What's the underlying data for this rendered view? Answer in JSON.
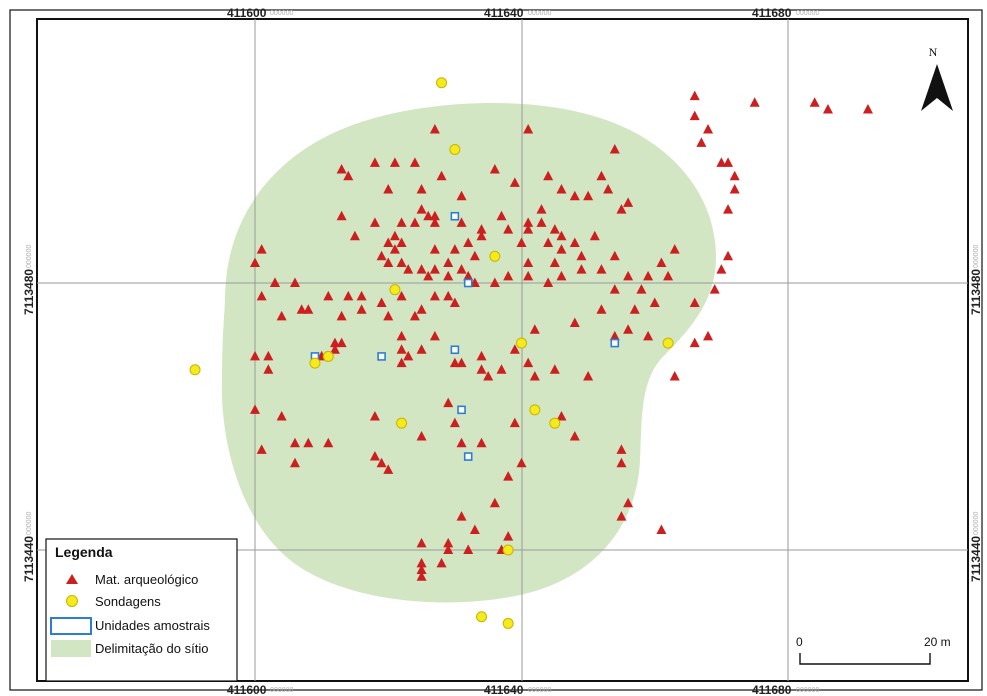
{
  "coordinates": {
    "easting": [
      {
        "major": "411600",
        "minor": "000000"
      },
      {
        "major": "411640",
        "minor": "000000"
      },
      {
        "major": "411680",
        "minor": "000000"
      }
    ],
    "northing": [
      {
        "major": "7113480",
        "minor": "000000"
      },
      {
        "major": "7113440",
        "minor": "000000"
      }
    ]
  },
  "north_arrow": {
    "label": "N",
    "icon": "north-arrow-icon"
  },
  "legend": {
    "title": "Legenda",
    "items": [
      {
        "label": "Mat. arqueológico",
        "symbol": "red-triangle",
        "color": "#cc1f1f"
      },
      {
        "label": "Sondagens",
        "symbol": "yellow-circle",
        "color": "#f5ea1c"
      },
      {
        "label": "Unidades amostrais",
        "symbol": "blue-square",
        "color": "#2a7fd4"
      },
      {
        "label": "Delimitação do sítio",
        "symbol": "green-area",
        "color": "#d3e6c4"
      }
    ]
  },
  "scale_bar": {
    "start": "0",
    "end": "20 m"
  },
  "colors": {
    "site_area": "#d3e6c4",
    "triangle": "#cc1f1f",
    "circle_fill": "#f5ea1c",
    "circle_stroke": "#c9b300",
    "square_stroke": "#2a7fd4",
    "grid": "#9a9a9a"
  },
  "mat_arqueologico": [
    [
      411627,
      7113503
    ],
    [
      411641,
      7113503
    ],
    [
      411654,
      7113500
    ],
    [
      411624,
      7113498
    ],
    [
      411628,
      7113496
    ],
    [
      411625,
      7113494
    ],
    [
      411631,
      7113493
    ],
    [
      411636,
      7113497
    ],
    [
      411639,
      7113495
    ],
    [
      411644,
      7113496
    ],
    [
      411646,
      7113494
    ],
    [
      411648,
      7113493
    ],
    [
      411650,
      7113493
    ],
    [
      411643,
      7113491
    ],
    [
      411641,
      7113489
    ],
    [
      411634,
      7113488
    ],
    [
      411631,
      7113489
    ],
    [
      411618,
      7113498
    ],
    [
      411613,
      7113497
    ],
    [
      411614,
      7113496
    ],
    [
      411620,
      7113494
    ],
    [
      411621,
      7113498
    ],
    [
      411613,
      7113490
    ],
    [
      411615,
      7113487
    ],
    [
      411618,
      7113489
    ],
    [
      411620,
      7113486
    ],
    [
      411621,
      7113487
    ],
    [
      411622,
      7113489
    ],
    [
      411625,
      7113491
    ],
    [
      411626,
      7113490
    ],
    [
      411627,
      7113489
    ],
    [
      411627,
      7113490
    ],
    [
      411624,
      7113489
    ],
    [
      411622,
      7113486
    ],
    [
      411619,
      7113484
    ],
    [
      411620,
      7113483
    ],
    [
      411621,
      7113485
    ],
    [
      411623,
      7113482
    ],
    [
      411622,
      7113483
    ],
    [
      411627,
      7113485
    ],
    [
      411630,
      7113485
    ],
    [
      411633,
      7113484
    ],
    [
      411631,
      7113482
    ],
    [
      411629,
      7113483
    ],
    [
      411627,
      7113482
    ],
    [
      411625,
      7113482
    ],
    [
      411626,
      7113481
    ],
    [
      411629,
      7113481
    ],
    [
      411632,
      7113481
    ],
    [
      411633,
      7113480
    ],
    [
      411634,
      7113487
    ],
    [
      411632,
      7113486
    ],
    [
      411637,
      7113490
    ],
    [
      411638,
      7113488
    ],
    [
      411641,
      7113488
    ],
    [
      411643,
      7113489
    ],
    [
      411645,
      7113488
    ],
    [
      411646,
      7113487
    ],
    [
      411648,
      7113486
    ],
    [
      411651,
      7113487
    ],
    [
      411649,
      7113484
    ],
    [
      411646,
      7113485
    ],
    [
      411644,
      7113486
    ],
    [
      411640,
      7113486
    ],
    [
      411641,
      7113483
    ],
    [
      411645,
      7113483
    ],
    [
      411646,
      7113481
    ],
    [
      411649,
      7113482
    ],
    [
      411652,
      7113482
    ],
    [
      411654,
      7113479
    ],
    [
      411654,
      7113484
    ],
    [
      411655,
      7113491
    ],
    [
      411652,
      7113496
    ],
    [
      411653,
      7113494
    ],
    [
      411656,
      7113492
    ],
    [
      411644,
      7113480
    ],
    [
      411641,
      7113481
    ],
    [
      411638,
      7113481
    ],
    [
      411636,
      7113480
    ],
    [
      411600,
      7113483
    ],
    [
      411603,
      7113480
    ],
    [
      411601,
      7113478
    ],
    [
      411606,
      7113480
    ],
    [
      411604,
      7113475
    ],
    [
      411608,
      7113476
    ],
    [
      411611,
      7113478
    ],
    [
      411614,
      7113478
    ],
    [
      411616,
      7113478
    ],
    [
      411619,
      7113477
    ],
    [
      411622,
      7113478
    ],
    [
      411625,
      7113476
    ],
    [
      411627,
      7113478
    ],
    [
      411629,
      7113478
    ],
    [
      411630,
      7113477
    ],
    [
      411627,
      7113472
    ],
    [
      411624,
      7113475
    ],
    [
      411620,
      7113475
    ],
    [
      411622,
      7113472
    ],
    [
      411616,
      7113476
    ],
    [
      411613,
      7113475
    ],
    [
      411612,
      7113471
    ],
    [
      411612,
      7113470
    ],
    [
      411613,
      7113471
    ],
    [
      411610,
      7113469
    ],
    [
      411622,
      7113470
    ],
    [
      411623,
      7113469
    ],
    [
      411622,
      7113468
    ],
    [
      411625,
      7113470
    ],
    [
      411630,
      7113468
    ],
    [
      411634,
      7113467
    ],
    [
      411635,
      7113466
    ],
    [
      411634,
      7113469
    ],
    [
      411631,
      7113468
    ],
    [
      411637,
      7113467
    ],
    [
      411641,
      7113468
    ],
    [
      411600,
      7113469
    ],
    [
      411602,
      7113469
    ],
    [
      411602,
      7113467
    ],
    [
      411600,
      7113461
    ],
    [
      411604,
      7113460
    ],
    [
      411601,
      7113455
    ],
    [
      411606,
      7113456
    ],
    [
      411606,
      7113453
    ],
    [
      411608,
      7113456
    ],
    [
      411611,
      7113456
    ],
    [
      411618,
      7113460
    ],
    [
      411625,
      7113457
    ],
    [
      411629,
      7113462
    ],
    [
      411630,
      7113459
    ],
    [
      411631,
      7113456
    ],
    [
      411639,
      7113459
    ],
    [
      411642,
      7113466
    ],
    [
      411639,
      7113470
    ],
    [
      411642,
      7113473
    ],
    [
      411645,
      7113467
    ],
    [
      411648,
      7113474
    ],
    [
      411652,
      7113476
    ],
    [
      411657,
      7113476
    ],
    [
      411658,
      7113479
    ],
    [
      411660,
      7113477
    ],
    [
      411656,
      7113481
    ],
    [
      411659,
      7113481
    ],
    [
      411662,
      7113481
    ],
    [
      411661,
      7113483
    ],
    [
      411663,
      7113485
    ],
    [
      411666,
      7113477
    ],
    [
      411669,
      7113479
    ],
    [
      411670,
      7113482
    ],
    [
      411671,
      7113484
    ],
    [
      411671,
      7113491
    ],
    [
      411672,
      7113496
    ],
    [
      411671,
      7113498
    ],
    [
      411668,
      7113503
    ],
    [
      411666,
      7113505
    ],
    [
      411667,
      7113501
    ],
    [
      411670,
      7113498
    ],
    [
      411672,
      7113494
    ],
    [
      411666,
      7113508
    ],
    [
      411675,
      7113507
    ],
    [
      411684,
      7113507
    ],
    [
      411686,
      7113506
    ],
    [
      411692,
      7113506
    ],
    [
      411668,
      7113472
    ],
    [
      411666,
      7113471
    ],
    [
      411663,
      7113466
    ],
    [
      411659,
      7113472
    ],
    [
      411656,
      7113473
    ],
    [
      411654,
      7113472
    ],
    [
      411650,
      7113466
    ],
    [
      411655,
      7113455
    ],
    [
      411655,
      7113453
    ],
    [
      411648,
      7113457
    ],
    [
      411646,
      7113460
    ],
    [
      411634,
      7113456
    ],
    [
      411638,
      7113451
    ],
    [
      411640,
      7113453
    ],
    [
      411636,
      7113447
    ],
    [
      411633,
      7113443
    ],
    [
      411637,
      7113440
    ],
    [
      411629,
      7113440
    ],
    [
      411625,
      7113441
    ],
    [
      411625,
      7113436
    ],
    [
      411625,
      7113437
    ],
    [
      411625,
      7113438
    ],
    [
      411638,
      7113442
    ],
    [
      411631,
      7113445
    ],
    [
      411619,
      7113453
    ],
    [
      411620,
      7113452
    ],
    [
      411618,
      7113454
    ],
    [
      411655,
      7113445
    ],
    [
      411656,
      7113447
    ],
    [
      411661,
      7113443
    ],
    [
      411632,
      7113440
    ],
    [
      411629,
      7113441
    ],
    [
      411628,
      7113438
    ],
    [
      411607,
      7113476
    ],
    [
      411603,
      7113480
    ],
    [
      411601,
      7113485
    ]
  ],
  "sondagens": [
    [
      411628,
      7113510
    ],
    [
      411630,
      7113500
    ],
    [
      411636,
      7113484
    ],
    [
      411621,
      7113479
    ],
    [
      411609,
      7113468
    ],
    [
      411611,
      7113469
    ],
    [
      411622,
      7113459
    ],
    [
      411640,
      7113471
    ],
    [
      411642,
      7113461
    ],
    [
      411645,
      7113459
    ],
    [
      411662,
      7113471
    ],
    [
      411638,
      7113440
    ],
    [
      411634,
      7113430
    ],
    [
      411591,
      7113467
    ],
    [
      411638,
      7113429
    ]
  ],
  "unidades_amostrais": [
    [
      411630,
      7113490
    ],
    [
      411632,
      7113480
    ],
    [
      411609,
      7113469
    ],
    [
      411619,
      7113469
    ],
    [
      411630,
      7113470
    ],
    [
      411631,
      7113461
    ],
    [
      411654,
      7113471
    ],
    [
      411632,
      7113454
    ]
  ]
}
